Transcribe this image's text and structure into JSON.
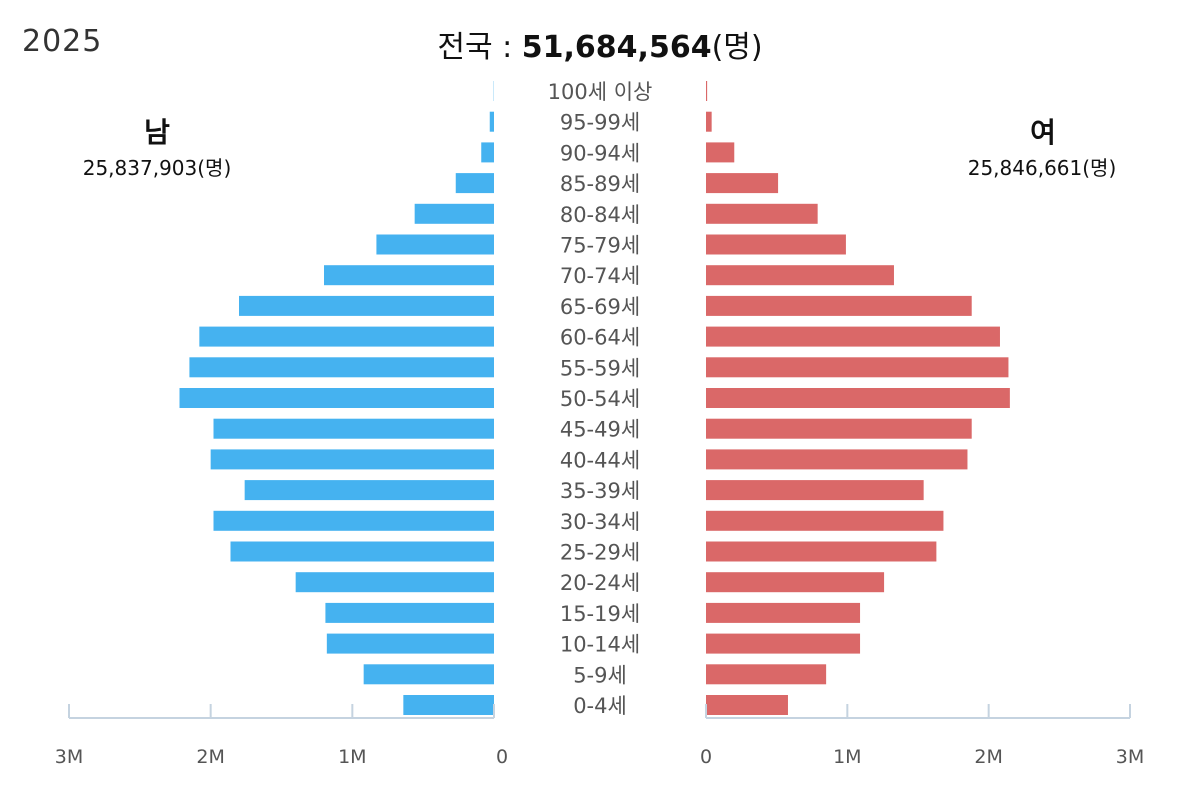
{
  "header": {
    "year": "2025",
    "title_prefix": "전국 : ",
    "title_value": "51,684,564",
    "title_unit": "(명)"
  },
  "male": {
    "label": "남",
    "total": "25,837,903(명)"
  },
  "female": {
    "label": "여",
    "total": "25,846,661(명)"
  },
  "colors": {
    "male": "#45b2f0",
    "female": "#da6868",
    "axis": "#c5d3e0"
  },
  "chart_data": {
    "type": "bar",
    "orientation": "horizontal-population-pyramid",
    "categories": [
      "100세 이상",
      "95-99세",
      "90-94세",
      "85-89세",
      "80-84세",
      "75-79세",
      "70-74세",
      "65-69세",
      "60-64세",
      "55-59세",
      "50-54세",
      "45-49세",
      "40-44세",
      "35-39세",
      "30-34세",
      "25-29세",
      "20-24세",
      "15-19세",
      "10-14세",
      "5-9세",
      "0-4세"
    ],
    "series": [
      {
        "name": "남",
        "values": [
          2000,
          30000,
          90000,
          270000,
          560000,
          830000,
          1200000,
          1800000,
          2080000,
          2150000,
          2220000,
          1980000,
          2000000,
          1760000,
          1980000,
          1860000,
          1400000,
          1190000,
          1180000,
          920000,
          640000
        ]
      },
      {
        "name": "여",
        "values": [
          8000,
          40000,
          200000,
          510000,
          790000,
          990000,
          1330000,
          1880000,
          2080000,
          2140000,
          2150000,
          1880000,
          1850000,
          1540000,
          1680000,
          1630000,
          1260000,
          1090000,
          1090000,
          850000,
          580000
        ]
      }
    ],
    "xlim": [
      0,
      3000000
    ],
    "ticks": [
      {
        "value": 3000000,
        "label": "3M"
      },
      {
        "value": 2000000,
        "label": "2M"
      },
      {
        "value": 1000000,
        "label": "1M"
      },
      {
        "value": 0,
        "label": "0"
      }
    ]
  }
}
